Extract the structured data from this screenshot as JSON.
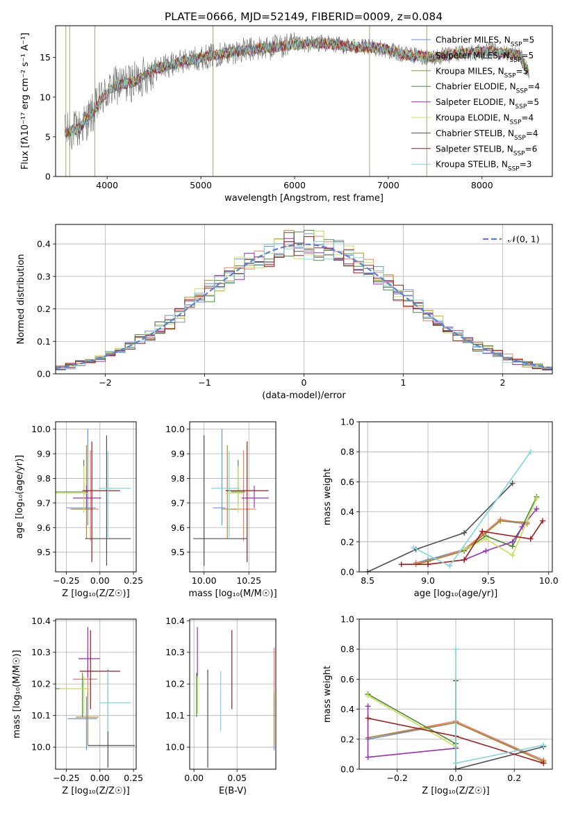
{
  "figure_title": "PLATE=0666, MJD=52149, FIBERID=0009, z=0.084",
  "colors": {
    "Chabrier MILES": "#6a8fdc",
    "Salpeter MILES": "#ee7f6a",
    "Kroupa MILES": "#b08a28",
    "Chabrier ELODIE": "#4a8a3a",
    "Salpeter ELODIE": "#9b2fb3",
    "Kroupa ELODIE": "#c8e05a",
    "Chabrier STELIB": "#4d4d4d",
    "Salpeter STELIB": "#a31818",
    "Kroupa STELIB": "#7fd6de"
  },
  "chart_data": [
    {
      "type": "line",
      "id": "spectrum",
      "title": "PLATE=0666, MJD=52149, FIBERID=0009, z=0.084",
      "xlabel": "wavelength [Angstrom, rest frame]",
      "ylabel": "Flux [fλ10⁻¹⁷ erg cm⁻² s⁻¹ A⁻¹]",
      "xlim": [
        3450,
        8750
      ],
      "ylim": [
        0,
        19
      ],
      "xticks": [
        4000,
        5000,
        6000,
        7000,
        8000
      ],
      "yticks": [
        0,
        5,
        10,
        15
      ],
      "legend_position": "top-right",
      "legend": [
        {
          "label": "Chabrier MILES, N",
          "sub": "SSP",
          "suffix": "=5",
          "key": "Chabrier MILES"
        },
        {
          "label": "Salpeter MILES, N",
          "sub": "SSP",
          "suffix": "=5",
          "key": "Salpeter MILES"
        },
        {
          "label": "Kroupa MILES, N",
          "sub": "SSP",
          "suffix": "=5",
          "key": "Kroupa MILES"
        },
        {
          "label": "Chabrier ELODIE, N",
          "sub": "SSP",
          "suffix": "=4",
          "key": "Chabrier ELODIE"
        },
        {
          "label": "Salpeter ELODIE, N",
          "sub": "SSP",
          "suffix": "=5",
          "key": "Salpeter ELODIE"
        },
        {
          "label": "Kroupa ELODIE, N",
          "sub": "SSP",
          "suffix": "=4",
          "key": "Kroupa ELODIE"
        },
        {
          "label": "Chabrier STELIB, N",
          "sub": "SSP",
          "suffix": "=4",
          "key": "Chabrier STELIB"
        },
        {
          "label": "Salpeter STELIB, N",
          "sub": "SSP",
          "suffix": "=6",
          "key": "Salpeter STELIB"
        },
        {
          "label": "Kroupa STELIB, N",
          "sub": "SSP",
          "suffix": "=3",
          "key": "Kroupa STELIB"
        }
      ],
      "continuum": [
        [
          3550,
          5.5
        ],
        [
          3700,
          6
        ],
        [
          3850,
          8
        ],
        [
          3950,
          10
        ],
        [
          4100,
          11.5
        ],
        [
          4300,
          12
        ],
        [
          4500,
          13.5
        ],
        [
          4800,
          14.5
        ],
        [
          5100,
          15.2
        ],
        [
          5400,
          15.8
        ],
        [
          5700,
          16.2
        ],
        [
          6000,
          16.6
        ],
        [
          6300,
          16.8
        ],
        [
          6600,
          16.4
        ],
        [
          6900,
          16.2
        ],
        [
          7200,
          15.3
        ],
        [
          7500,
          15
        ],
        [
          7800,
          15.6
        ],
        [
          8100,
          15.8
        ],
        [
          8400,
          15.3
        ],
        [
          8500,
          13
        ]
      ],
      "spikes": [
        [
          3870,
          0
        ],
        [
          5130,
          0
        ],
        [
          6800,
          0
        ],
        [
          7410,
          0
        ],
        [
          3560,
          0
        ],
        [
          3600,
          0
        ]
      ]
    },
    {
      "type": "histogram",
      "id": "residuals",
      "xlabel": "(data-model)/error",
      "ylabel": "Normed distribution",
      "xlim": [
        -2.5,
        2.5
      ],
      "ylim": [
        0,
        0.46
      ],
      "xticks": [
        -2,
        -1,
        0,
        1,
        2
      ],
      "yticks": [
        0.0,
        0.1,
        0.2,
        0.3,
        0.4
      ],
      "grid": true,
      "legend_position": "top-right",
      "legend": [
        {
          "label": "𝒩(0, 1)",
          "style": "dashed",
          "color": "#5b7fd6"
        }
      ],
      "bin_width": 0.1
    },
    {
      "type": "scatter",
      "id": "age_vs_Z",
      "xlabel": "Z [log₁₀(Z/Z☉)]",
      "ylabel": "age  [log₁₀(age/yr)]",
      "xlim": [
        -0.33,
        0.27
      ],
      "ylim": [
        9.42,
        10.03
      ],
      "xticks": [
        -0.25,
        0.0,
        0.25
      ],
      "xtick_labels": [
        "−0.25",
        "0.00",
        "0.25"
      ],
      "yticks": [
        9.5,
        9.6,
        9.7,
        9.8,
        9.9,
        10.0
      ],
      "grid": true,
      "points": [
        {
          "key": "Chabrier MILES",
          "x": -0.09,
          "xerr": [
            0.16,
            0.06
          ],
          "y": 9.68,
          "yerr": [
            0.07,
            0.32
          ]
        },
        {
          "key": "Salpeter MILES",
          "x": -0.07,
          "xerr": [
            0.13,
            0.06
          ],
          "y": 9.675,
          "yerr": [
            0.13,
            0.24
          ]
        },
        {
          "key": "Kroupa MILES",
          "x": -0.1,
          "xerr": [
            0.12,
            0.05
          ],
          "y": 9.675,
          "yerr": [
            0.12,
            0.26
          ]
        },
        {
          "key": "Chabrier ELODIE",
          "x": -0.12,
          "xerr": [
            0.22,
            0.03
          ],
          "y": 9.745,
          "yerr": [
            0.05,
            0.13
          ]
        },
        {
          "key": "Salpeter ELODIE",
          "x": -0.1,
          "xerr": [
            0.1,
            0.11
          ],
          "y": 9.72,
          "yerr": [
            0.04,
            0.05
          ]
        },
        {
          "key": "Kroupa ELODIE",
          "x": -0.12,
          "xerr": [
            0.22,
            0.03
          ],
          "y": 9.74,
          "yerr": [
            0.08,
            0.11
          ]
        },
        {
          "key": "Chabrier STELIB",
          "x": 0.05,
          "xerr": [
            0.16,
            0.18
          ],
          "y": 9.555,
          "yerr": [
            0.11,
            0.42
          ]
        },
        {
          "key": "Salpeter STELIB",
          "x": -0.06,
          "xerr": [
            0.07,
            0.21
          ],
          "y": 9.75,
          "yerr": [
            0.29,
            0.2
          ]
        },
        {
          "key": "Kroupa STELIB",
          "x": 0.06,
          "xerr": [
            0.07,
            0.17
          ],
          "y": 9.76,
          "yerr": [
            0.2,
            0.15
          ]
        }
      ]
    },
    {
      "type": "scatter",
      "id": "age_vs_mass",
      "xlabel": "mass [log₁₀(M/M☉)]",
      "ylabel": "",
      "xlim": [
        9.92,
        10.4
      ],
      "ylim": [
        9.42,
        10.03
      ],
      "xticks": [
        10.0,
        10.25
      ],
      "xtick_labels": [
        "10.00",
        "10.25"
      ],
      "yticks": [
        9.5,
        9.6,
        9.7,
        9.8,
        9.9,
        10.0
      ],
      "grid": true,
      "points": [
        {
          "key": "Chabrier MILES",
          "x": 10.1,
          "xerr": [
            0.05,
            0.02
          ],
          "y": 9.68,
          "yerr": [
            0.07,
            0.32
          ]
        },
        {
          "key": "Salpeter MILES",
          "x": 10.22,
          "xerr": [
            0.07,
            0.07
          ],
          "y": 9.675,
          "yerr": [
            0.13,
            0.24
          ]
        },
        {
          "key": "Kroupa MILES",
          "x": 10.13,
          "xerr": [
            0.03,
            0.06
          ],
          "y": 9.675,
          "yerr": [
            0.12,
            0.26
          ]
        },
        {
          "key": "Chabrier ELODIE",
          "x": 10.19,
          "xerr": [
            0.04,
            0.04
          ],
          "y": 9.745,
          "yerr": [
            0.05,
            0.13
          ]
        },
        {
          "key": "Salpeter ELODIE",
          "x": 10.28,
          "xerr": [
            0.07,
            0.08
          ],
          "y": 9.72,
          "yerr": [
            0.04,
            0.05
          ]
        },
        {
          "key": "Kroupa ELODIE",
          "x": 10.19,
          "xerr": [
            0.07,
            0.03
          ],
          "y": 9.74,
          "yerr": [
            0.08,
            0.11
          ]
        },
        {
          "key": "Chabrier STELIB",
          "x": 10.0,
          "xerr": [
            0.06,
            0.24
          ],
          "y": 9.555,
          "yerr": [
            0.11,
            0.42
          ]
        },
        {
          "key": "Salpeter STELIB",
          "x": 10.24,
          "xerr": [
            0.12,
            0.12
          ],
          "y": 9.75,
          "yerr": [
            0.29,
            0.2
          ]
        },
        {
          "key": "Kroupa STELIB",
          "x": 10.14,
          "xerr": [
            0.1,
            0.06
          ],
          "y": 9.76,
          "yerr": [
            0.2,
            0.15
          ]
        }
      ]
    },
    {
      "type": "line",
      "id": "weight_vs_age",
      "xlabel": "age  [log₁₀(age/yr)]",
      "ylabel": "mass weight",
      "xlim": [
        8.43,
        10.03
      ],
      "ylim": [
        0,
        1
      ],
      "xticks": [
        8.5,
        9.0,
        9.5,
        10.0
      ],
      "xtick_labels": [
        "8.5",
        "9.0",
        "9.5",
        "10.0"
      ],
      "yticks": [
        0.0,
        0.2,
        0.4,
        0.6,
        0.8,
        1.0
      ],
      "grid": true,
      "series": [
        {
          "key": "Chabrier MILES",
          "x": [
            8.9,
            9.0,
            9.3,
            9.6,
            9.82
          ],
          "y": [
            0.06,
            0.08,
            0.15,
            0.34,
            0.32
          ]
        },
        {
          "key": "Salpeter MILES",
          "x": [
            8.9,
            9.0,
            9.3,
            9.6,
            9.82
          ],
          "y": [
            0.06,
            0.07,
            0.15,
            0.35,
            0.32
          ]
        },
        {
          "key": "Kroupa MILES",
          "x": [
            8.9,
            9.0,
            9.3,
            9.6,
            9.82
          ],
          "y": [
            0.05,
            0.07,
            0.14,
            0.34,
            0.33
          ]
        },
        {
          "key": "Chabrier ELODIE",
          "x": [
            9.3,
            9.48,
            9.7,
            9.9
          ],
          "y": [
            0.14,
            0.24,
            0.17,
            0.5
          ]
        },
        {
          "key": "Salpeter ELODIE",
          "x": [
            9.3,
            9.48,
            9.7,
            9.78,
            9.9
          ],
          "y": [
            0.08,
            0.14,
            0.2,
            0.3,
            0.42
          ]
        },
        {
          "key": "Kroupa ELODIE",
          "x": [
            9.3,
            9.48,
            9.7,
            9.9
          ],
          "y": [
            0.15,
            0.22,
            0.11,
            0.49
          ]
        },
        {
          "key": "Chabrier STELIB",
          "x": [
            8.5,
            8.9,
            9.3,
            9.7
          ],
          "y": [
            0.0,
            0.15,
            0.26,
            0.59
          ]
        },
        {
          "key": "Salpeter STELIB",
          "x": [
            8.78,
            9.0,
            9.3,
            9.45,
            9.85,
            9.95
          ],
          "y": [
            0.05,
            0.05,
            0.08,
            0.27,
            0.22,
            0.34
          ]
        },
        {
          "key": "Kroupa STELIB",
          "x": [
            8.88,
            9.18,
            9.85
          ],
          "y": [
            0.16,
            0.04,
            0.8
          ]
        }
      ]
    },
    {
      "type": "scatter",
      "id": "mass_vs_Z",
      "xlabel": "Z [log₁₀(Z/Z☉)]",
      "ylabel": "mass [log₁₀(M/M☉)]",
      "xlim": [
        -0.33,
        0.27
      ],
      "ylim": [
        9.93,
        10.405
      ],
      "xticks": [
        -0.25,
        0.0,
        0.25
      ],
      "xtick_labels": [
        "−0.25",
        "0.00",
        "0.25"
      ],
      "yticks": [
        10.0,
        10.1,
        10.2,
        10.3,
        10.4
      ],
      "grid": true,
      "points": [
        {
          "key": "Chabrier MILES",
          "x": -0.1,
          "xerr": [
            0.14,
            0.08
          ],
          "y": 10.09,
          "yerr": [
            0.1,
            0.07
          ]
        },
        {
          "key": "Salpeter MILES",
          "x": -0.09,
          "xerr": [
            0.11,
            0.07
          ],
          "y": 10.215,
          "yerr": [
            0.1,
            0.1
          ]
        },
        {
          "key": "Kroupa MILES",
          "x": -0.09,
          "xerr": [
            0.09,
            0.08
          ],
          "y": 10.095,
          "yerr": [
            0.09,
            0.08
          ]
        },
        {
          "key": "Chabrier ELODIE",
          "x": -0.13,
          "xerr": [
            0.21,
            0.05
          ],
          "y": 10.185,
          "yerr": [
            0.09,
            0.05
          ]
        },
        {
          "key": "Salpeter ELODIE",
          "x": -0.09,
          "xerr": [
            0.07,
            0.09
          ],
          "y": 10.28,
          "yerr": [
            0.06,
            0.1
          ]
        },
        {
          "key": "Kroupa ELODIE",
          "x": -0.12,
          "xerr": [
            0.18,
            0.04
          ],
          "y": 10.185,
          "yerr": [
            0.08,
            0.04
          ]
        },
        {
          "key": "Chabrier STELIB",
          "x": 0.06,
          "xerr": [
            0.15,
            0.2
          ],
          "y": 10.005,
          "yerr": [
            0.07,
            0.24
          ]
        },
        {
          "key": "Salpeter STELIB",
          "x": -0.07,
          "xerr": [
            0.08,
            0.22
          ],
          "y": 10.24,
          "yerr": [
            0.12,
            0.13
          ]
        },
        {
          "key": "Kroupa STELIB",
          "x": 0.06,
          "xerr": [
            0.06,
            0.17
          ],
          "y": 10.14,
          "yerr": [
            0.09,
            0.1
          ]
        }
      ]
    },
    {
      "type": "scatter",
      "id": "mass_vs_ebv",
      "xlabel": "E(B-V)",
      "ylabel": "",
      "xlim": [
        -0.005,
        0.095
      ],
      "ylim": [
        9.93,
        10.405
      ],
      "xticks": [
        0.0,
        0.05
      ],
      "xtick_labels": [
        "0.00",
        "0.05"
      ],
      "yticks": [
        10.0,
        10.1,
        10.2,
        10.3,
        10.4
      ],
      "grid": true,
      "points": [
        {
          "key": "Chabrier MILES",
          "x": 0.093,
          "y": 10.09,
          "yerr": [
            0.1,
            0.07
          ]
        },
        {
          "key": "Salpeter MILES",
          "x": 0.093,
          "y": 10.215,
          "yerr": [
            0.1,
            0.1
          ]
        },
        {
          "key": "Kroupa MILES",
          "x": 0.093,
          "y": 10.095,
          "yerr": [
            0.09,
            0.08
          ]
        },
        {
          "key": "Chabrier ELODIE",
          "x": 0.003,
          "y": 10.185,
          "yerr": [
            0.09,
            0.05
          ]
        },
        {
          "key": "Salpeter ELODIE",
          "x": 0.004,
          "y": 10.28,
          "yerr": [
            0.06,
            0.1
          ]
        },
        {
          "key": "Kroupa ELODIE",
          "x": 0.004,
          "y": 10.185,
          "yerr": [
            0.08,
            0.04
          ]
        },
        {
          "key": "Chabrier STELIB",
          "x": 0.016,
          "y": 10.005,
          "yerr": [
            0.07,
            0.24
          ]
        },
        {
          "key": "Salpeter STELIB",
          "x": 0.044,
          "y": 10.24,
          "yerr": [
            0.12,
            0.13
          ]
        },
        {
          "key": "Kroupa STELIB",
          "x": 0.031,
          "y": 10.14,
          "yerr": [
            0.09,
            0.1
          ]
        }
      ]
    },
    {
      "type": "line",
      "id": "weight_vs_Z",
      "xlabel": "Z [log₁₀(Z/Z☉)]",
      "ylabel": "mass weight",
      "xlim": [
        -0.33,
        0.33
      ],
      "ylim": [
        0,
        1
      ],
      "xticks": [
        -0.2,
        0.0,
        0.2
      ],
      "xtick_labels": [
        "−0.2",
        "0.0",
        "0.2"
      ],
      "yticks": [
        0.0,
        0.2,
        0.4,
        0.6,
        0.8,
        1.0
      ],
      "grid": true,
      "series": [
        {
          "key": "Chabrier MILES",
          "x": [
            -0.3,
            0.0,
            0.3
          ],
          "y": [
            0.2,
            0.31,
            0.06
          ]
        },
        {
          "key": "Salpeter MILES",
          "x": [
            -0.3,
            0.0,
            0.3
          ],
          "y": [
            0.21,
            0.32,
            0.06
          ]
        },
        {
          "key": "Kroupa MILES",
          "x": [
            -0.3,
            0.0,
            0.3
          ],
          "y": [
            0.21,
            0.31,
            0.05
          ]
        },
        {
          "key": "Chabrier ELODIE",
          "x": [
            -0.3,
            0.0
          ],
          "y": [
            0.5,
            0.17
          ]
        },
        {
          "key": "Salpeter ELODIE",
          "x": [
            -0.3,
            -0.3,
            0.0
          ],
          "y": [
            0.42,
            0.08,
            0.14
          ]
        },
        {
          "key": "Kroupa ELODIE",
          "x": [
            -0.3,
            0.0
          ],
          "y": [
            0.49,
            0.15
          ]
        },
        {
          "key": "Chabrier STELIB",
          "x": [
            0.0,
            0.0,
            0.3
          ],
          "y": [
            0.59,
            0.0,
            0.15
          ]
        },
        {
          "key": "Salpeter STELIB",
          "x": [
            -0.3,
            0.0,
            0.3
          ],
          "y": [
            0.34,
            0.22,
            0.04
          ]
        },
        {
          "key": "Kroupa STELIB",
          "x": [
            0.0,
            0.0,
            0.3
          ],
          "y": [
            0.8,
            0.04,
            0.16
          ]
        }
      ]
    }
  ]
}
